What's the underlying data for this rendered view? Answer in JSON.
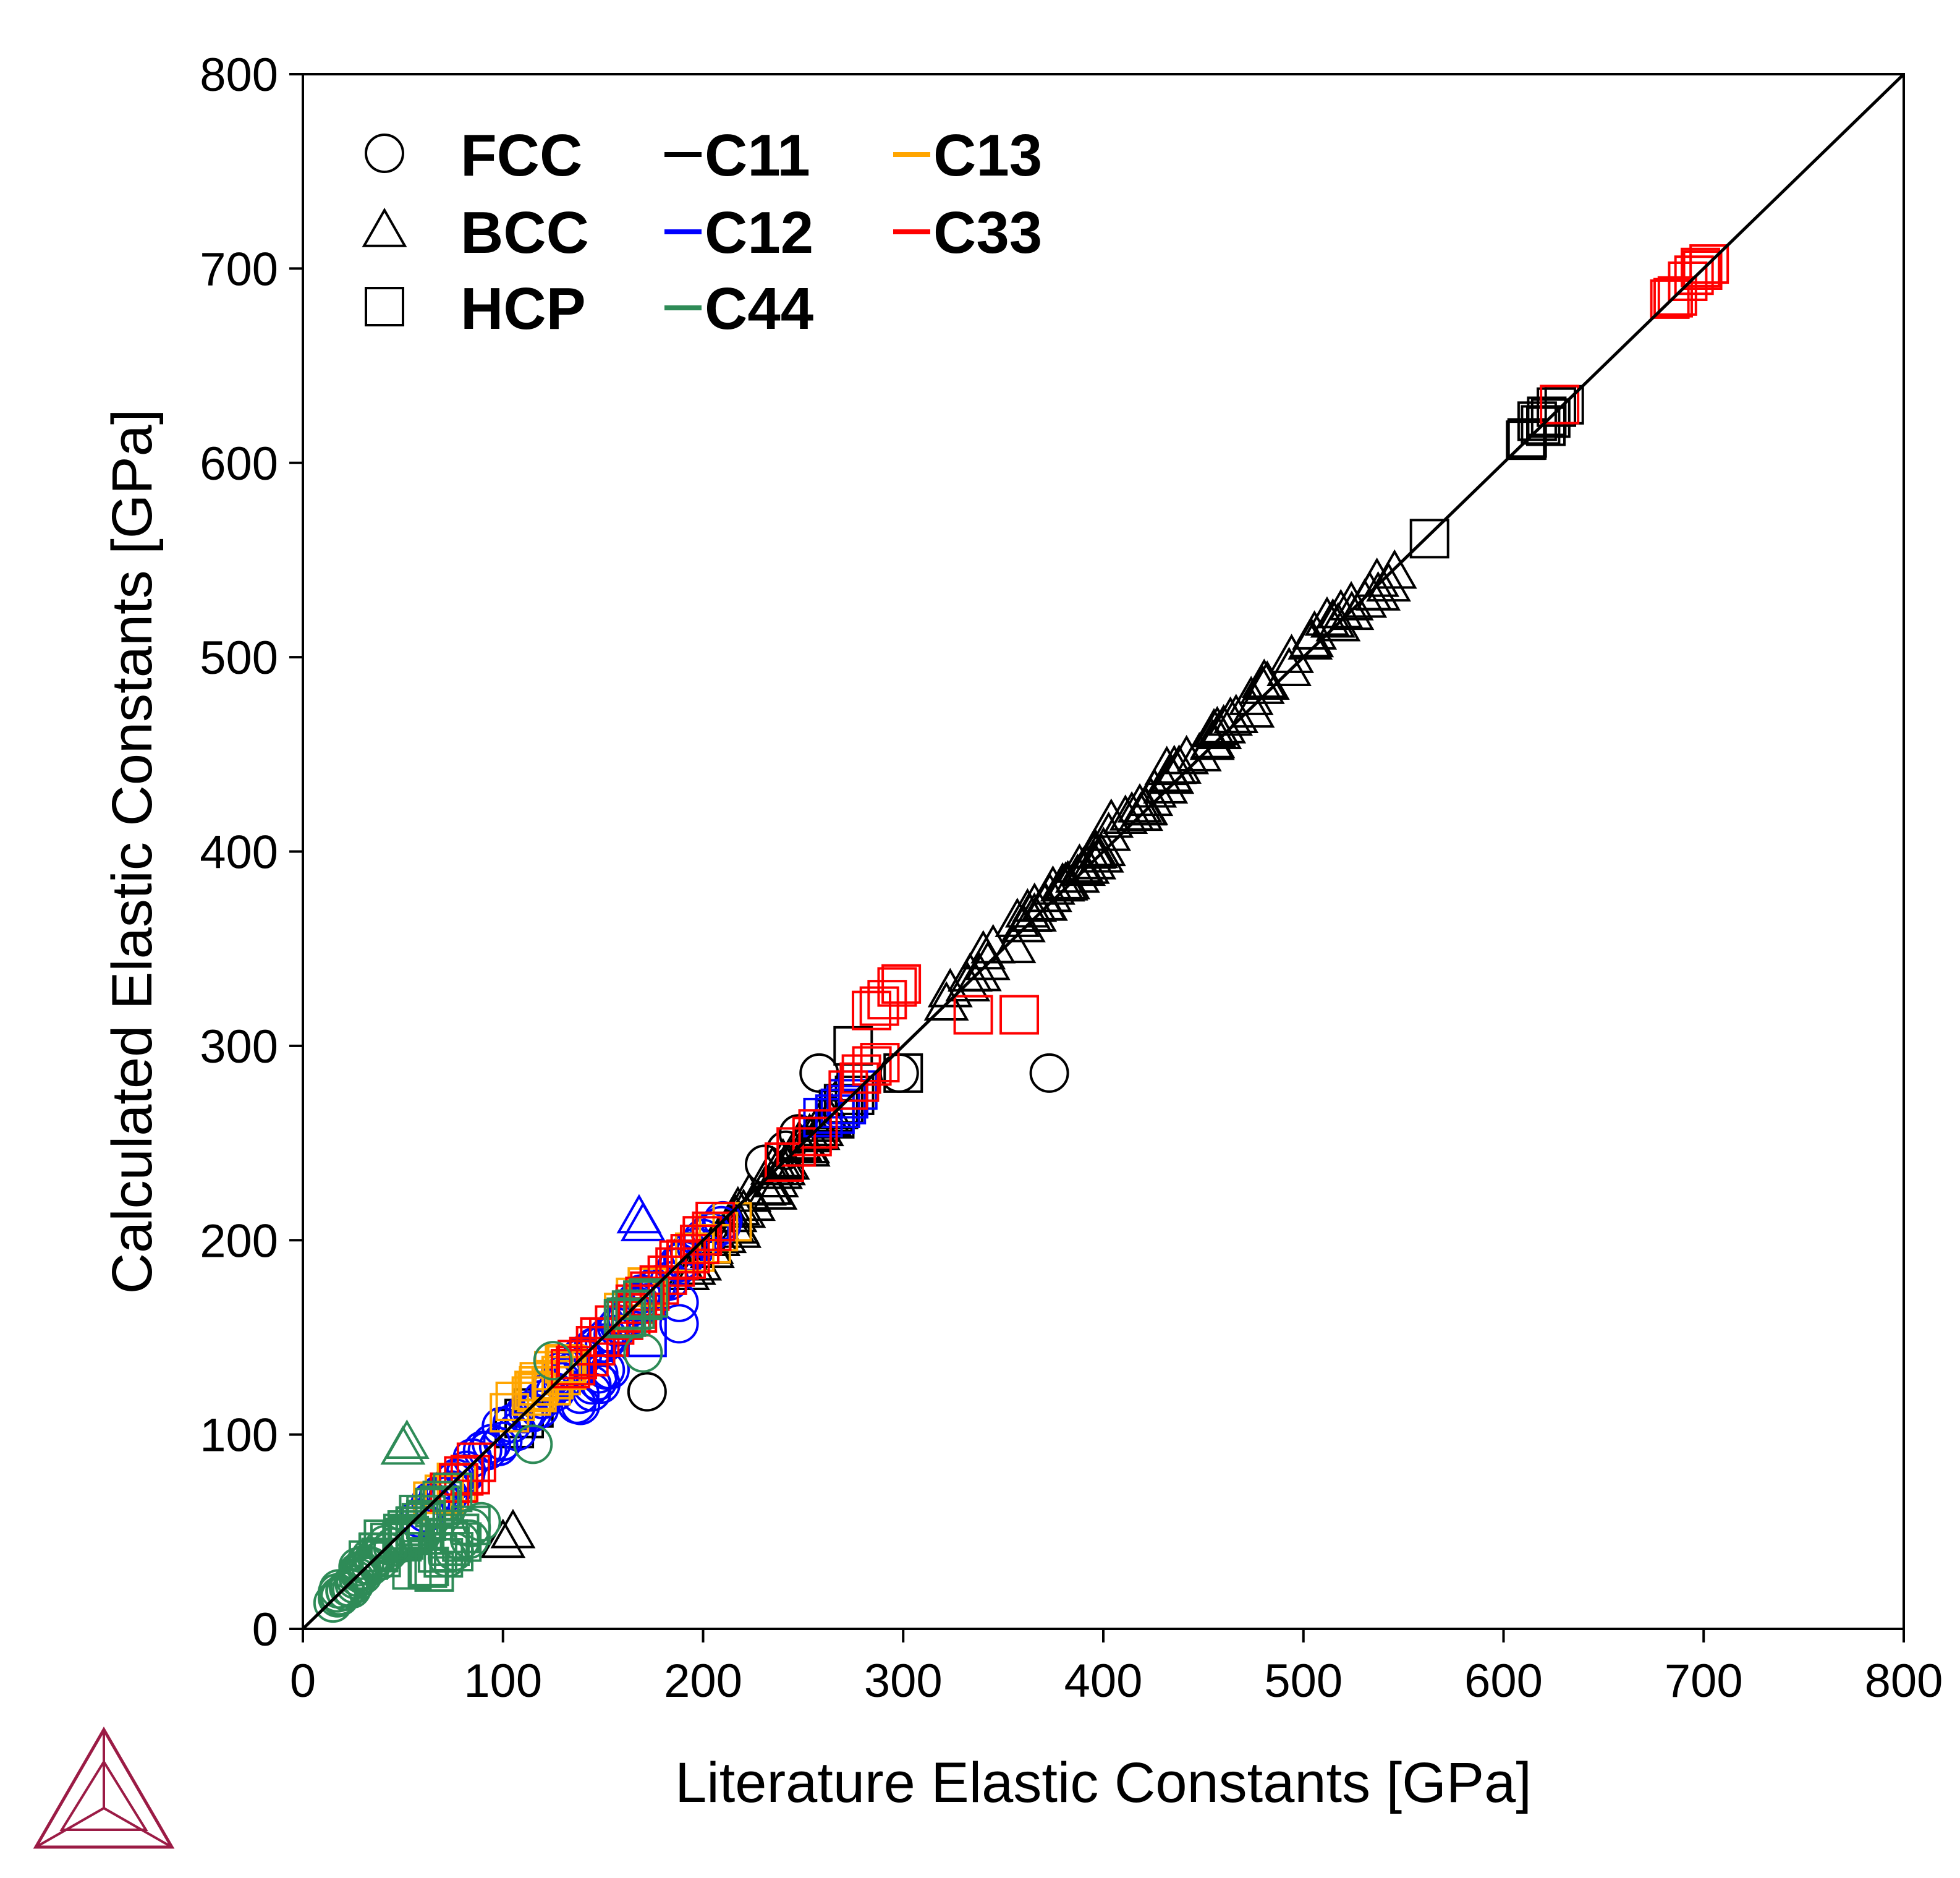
{
  "chart_data": {
    "type": "scatter",
    "xlabel": "Literature Elastic Constants [GPa]",
    "ylabel": "Calculated Elastic Constants [GPa]",
    "xlim": [
      0,
      800
    ],
    "ylim": [
      0,
      800
    ],
    "xticks": [
      "0",
      "100",
      "200",
      "300",
      "400",
      "500",
      "600",
      "700",
      "800"
    ],
    "yticks": [
      "0",
      "100",
      "200",
      "300",
      "400",
      "500",
      "600",
      "700",
      "800"
    ],
    "grid": false,
    "reference_line": "y = x",
    "legend_position": "top-left",
    "legend": {
      "structures": [
        {
          "label": "FCC",
          "marker": "circle"
        },
        {
          "label": "BCC",
          "marker": "triangle"
        },
        {
          "label": "HCP",
          "marker": "square"
        }
      ],
      "constants": [
        {
          "label": "C11",
          "color": "#000000"
        },
        {
          "label": "C12",
          "color": "#0000ff"
        },
        {
          "label": "C44",
          "color": "#2e8b57"
        },
        {
          "label": "C13",
          "color": "#ffa500"
        },
        {
          "label": "C33",
          "color": "#ff0000"
        }
      ]
    },
    "points": [
      {
        "x": 530,
        "y": 530,
        "m": "triangle",
        "c": "C11",
        "spread": 14,
        "n": 10
      },
      {
        "x": 510,
        "y": 515,
        "m": "triangle",
        "c": "C11",
        "spread": 8,
        "n": 4
      },
      {
        "x": 490,
        "y": 495,
        "m": "triangle",
        "c": "C11",
        "spread": 14,
        "n": 5
      },
      {
        "x": 465,
        "y": 470,
        "m": "triangle",
        "c": "C11",
        "spread": 14,
        "n": 8
      },
      {
        "x": 445,
        "y": 450,
        "m": "triangle",
        "c": "C11",
        "spread": 14,
        "n": 8
      },
      {
        "x": 425,
        "y": 430,
        "m": "triangle",
        "c": "C11",
        "spread": 14,
        "n": 8
      },
      {
        "x": 405,
        "y": 410,
        "m": "triangle",
        "c": "C11",
        "spread": 14,
        "n": 8
      },
      {
        "x": 390,
        "y": 392,
        "m": "triangle",
        "c": "C11",
        "spread": 8,
        "n": 8
      },
      {
        "x": 370,
        "y": 372,
        "m": "triangle",
        "c": "C11",
        "spread": 10,
        "n": 9
      },
      {
        "x": 350,
        "y": 352,
        "m": "triangle",
        "c": "C11",
        "spread": 12,
        "n": 6
      },
      {
        "x": 330,
        "y": 332,
        "m": "triangle",
        "c": "C11",
        "spread": 10,
        "n": 5
      },
      {
        "x": 250,
        "y": 250,
        "m": "triangle",
        "c": "C11",
        "spread": 14,
        "n": 14
      },
      {
        "x": 225,
        "y": 220,
        "m": "triangle",
        "c": "C11",
        "spread": 12,
        "n": 12
      },
      {
        "x": 205,
        "y": 195,
        "m": "triangle",
        "c": "C11",
        "spread": 10,
        "n": 8
      },
      {
        "x": 105,
        "y": 50,
        "m": "triangle",
        "c": "C11"
      },
      {
        "x": 100,
        "y": 45,
        "m": "triangle",
        "c": "C11"
      },
      {
        "x": 620,
        "y": 620,
        "m": "square",
        "c": "C11",
        "spread": 10,
        "n": 10
      },
      {
        "x": 563,
        "y": 561,
        "m": "square",
        "c": "C11"
      },
      {
        "x": 300,
        "y": 286,
        "m": "square",
        "c": "C11"
      },
      {
        "x": 275,
        "y": 300,
        "m": "square",
        "c": "C11"
      },
      {
        "x": 270,
        "y": 270,
        "m": "square",
        "c": "C11",
        "spread": 6,
        "n": 4
      },
      {
        "x": 258,
        "y": 286,
        "m": "circle",
        "c": "C11"
      },
      {
        "x": 298,
        "y": 286,
        "m": "circle",
        "c": "C11"
      },
      {
        "x": 373,
        "y": 286,
        "m": "circle",
        "c": "C11"
      },
      {
        "x": 172,
        "y": 122,
        "m": "circle",
        "c": "C11"
      },
      {
        "x": 240,
        "y": 245,
        "m": "circle",
        "c": "C11",
        "spread": 8,
        "n": 3
      },
      {
        "x": 110,
        "y": 108,
        "m": "square",
        "c": "C11",
        "spread": 6,
        "n": 3
      },
      {
        "x": 200,
        "y": 200,
        "m": "circle",
        "c": "C12",
        "spread": 10,
        "n": 8
      },
      {
        "x": 180,
        "y": 180,
        "m": "circle",
        "c": "C12",
        "spread": 10,
        "n": 8
      },
      {
        "x": 160,
        "y": 160,
        "m": "circle",
        "c": "C12",
        "spread": 10,
        "n": 8
      },
      {
        "x": 140,
        "y": 140,
        "m": "circle",
        "c": "C12",
        "spread": 10,
        "n": 8
      },
      {
        "x": 145,
        "y": 125,
        "m": "circle",
        "c": "C12",
        "spread": 10,
        "n": 10
      },
      {
        "x": 120,
        "y": 120,
        "m": "circle",
        "c": "C12",
        "spread": 10,
        "n": 8
      },
      {
        "x": 100,
        "y": 100,
        "m": "circle",
        "c": "C12",
        "spread": 10,
        "n": 8
      },
      {
        "x": 80,
        "y": 80,
        "m": "circle",
        "c": "C12",
        "spread": 10,
        "n": 8
      },
      {
        "x": 65,
        "y": 65,
        "m": "circle",
        "c": "C12",
        "spread": 8,
        "n": 6
      },
      {
        "x": 188,
        "y": 157,
        "m": "circle",
        "c": "C12"
      },
      {
        "x": 188,
        "y": 168,
        "m": "circle",
        "c": "C12"
      },
      {
        "x": 168,
        "y": 212,
        "m": "triangle",
        "c": "C12"
      },
      {
        "x": 170,
        "y": 208,
        "m": "triangle",
        "c": "C12"
      },
      {
        "x": 270,
        "y": 270,
        "m": "square",
        "c": "C12",
        "spread": 8,
        "n": 6
      },
      {
        "x": 172,
        "y": 150,
        "m": "square",
        "c": "C12"
      },
      {
        "x": 125,
        "y": 130,
        "m": "square",
        "c": "C13",
        "spread": 8,
        "n": 10
      },
      {
        "x": 110,
        "y": 118,
        "m": "square",
        "c": "C13",
        "spread": 8,
        "n": 4
      },
      {
        "x": 205,
        "y": 200,
        "m": "square",
        "c": "C13",
        "spread": 8,
        "n": 4
      },
      {
        "x": 70,
        "y": 70,
        "m": "square",
        "c": "C13",
        "spread": 6,
        "n": 3
      },
      {
        "x": 165,
        "y": 170,
        "m": "square",
        "c": "C13",
        "spread": 6,
        "n": 3
      },
      {
        "x": 693,
        "y": 693,
        "m": "square",
        "c": "C33",
        "spread": 10,
        "n": 8
      },
      {
        "x": 628,
        "y": 630,
        "m": "square",
        "c": "C33"
      },
      {
        "x": 292,
        "y": 325,
        "m": "square",
        "c": "C33",
        "spread": 8,
        "n": 5
      },
      {
        "x": 335,
        "y": 316,
        "m": "square",
        "c": "C33"
      },
      {
        "x": 358,
        "y": 316,
        "m": "square",
        "c": "C33"
      },
      {
        "x": 280,
        "y": 285,
        "m": "square",
        "c": "C33",
        "spread": 8,
        "n": 5
      },
      {
        "x": 250,
        "y": 250,
        "m": "square",
        "c": "C33",
        "spread": 8,
        "n": 4
      },
      {
        "x": 200,
        "y": 200,
        "m": "square",
        "c": "C33",
        "spread": 8,
        "n": 6
      },
      {
        "x": 180,
        "y": 180,
        "m": "square",
        "c": "C33",
        "spread": 8,
        "n": 6
      },
      {
        "x": 160,
        "y": 160,
        "m": "square",
        "c": "C33",
        "spread": 8,
        "n": 6
      },
      {
        "x": 140,
        "y": 140,
        "m": "square",
        "c": "C33",
        "spread": 8,
        "n": 6
      },
      {
        "x": 80,
        "y": 78,
        "m": "square",
        "c": "C33",
        "spread": 6,
        "n": 5
      },
      {
        "x": 165,
        "y": 165,
        "m": "square",
        "c": "C44",
        "spread": 6,
        "n": 6
      },
      {
        "x": 52,
        "y": 96,
        "m": "triangle",
        "c": "C44"
      },
      {
        "x": 50,
        "y": 93,
        "m": "triangle",
        "c": "C44"
      },
      {
        "x": 115,
        "y": 95,
        "m": "circle",
        "c": "C44"
      },
      {
        "x": 125,
        "y": 138,
        "m": "circle",
        "c": "C44"
      },
      {
        "x": 170,
        "y": 142,
        "m": "circle",
        "c": "C44"
      },
      {
        "x": 60,
        "y": 55,
        "m": "square",
        "c": "C44",
        "spread": 12,
        "n": 14
      },
      {
        "x": 45,
        "y": 45,
        "m": "square",
        "c": "C44",
        "spread": 12,
        "n": 10
      },
      {
        "x": 70,
        "y": 40,
        "m": "square",
        "c": "C44",
        "spread": 12,
        "n": 12
      },
      {
        "x": 35,
        "y": 35,
        "m": "circle",
        "c": "C44",
        "spread": 10,
        "n": 14
      },
      {
        "x": 25,
        "y": 25,
        "m": "circle",
        "c": "C44",
        "spread": 8,
        "n": 12
      },
      {
        "x": 20,
        "y": 18,
        "m": "circle",
        "c": "C44",
        "spread": 4,
        "n": 6
      },
      {
        "x": 80,
        "y": 45,
        "m": "circle",
        "c": "C44",
        "spread": 8,
        "n": 6
      }
    ]
  }
}
